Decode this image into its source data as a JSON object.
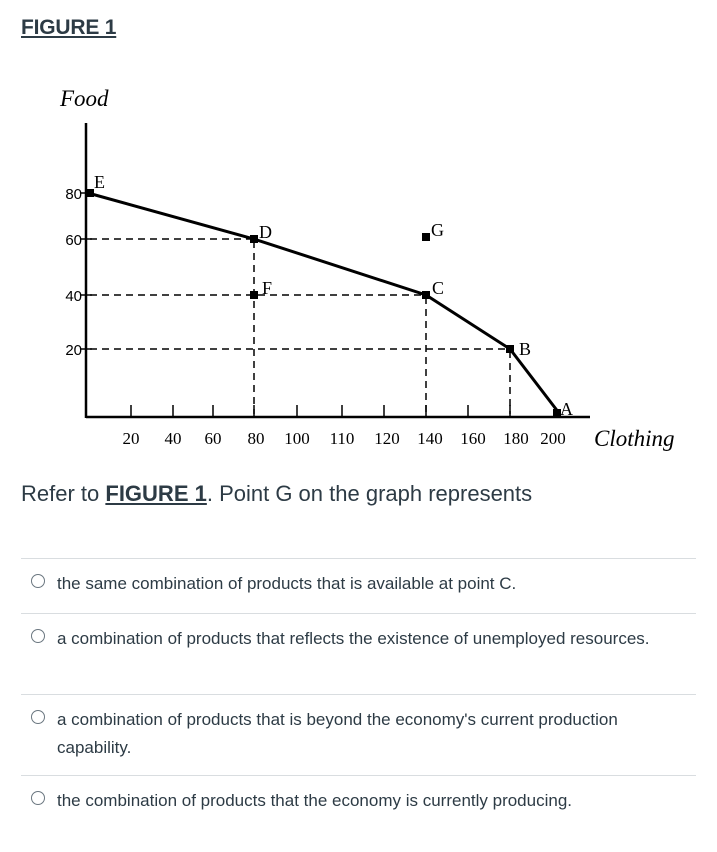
{
  "figure_title": "FIGURE 1",
  "question": {
    "prefix": "Refer to ",
    "reference": "FIGURE 1",
    "suffix": ". Point G on the graph represents"
  },
  "answers": [
    {
      "label": "the same combination of products that is available at point C."
    },
    {
      "label": "a combination of products that reflects the existence of unemployed resources."
    },
    {
      "label": "a combination of products that is beyond the economy's current production capability."
    },
    {
      "label": "the combination of products that the economy is currently producing."
    }
  ],
  "chart_data": {
    "type": "line",
    "ylabel": "Food",
    "xlabel": "Clothing",
    "y_ticks": [
      "80",
      "60",
      "40",
      "20"
    ],
    "x_ticks": [
      "20",
      "40",
      "60",
      "80",
      "100",
      "110",
      "120",
      "140",
      "160",
      "180",
      "200"
    ],
    "ppf_points": [
      {
        "label": "E",
        "clothing": 0,
        "food": 80
      },
      {
        "label": "D",
        "clothing": 80,
        "food": 60
      },
      {
        "label": "C",
        "clothing": 160,
        "food": 40
      },
      {
        "label": "B",
        "clothing": 200,
        "food": 20
      },
      {
        "label": "A",
        "clothing": 220,
        "food": 0
      }
    ],
    "other_points": [
      {
        "label": "F",
        "clothing": 80,
        "food": 40
      },
      {
        "label": "G",
        "clothing": 160,
        "food": 60
      }
    ]
  }
}
